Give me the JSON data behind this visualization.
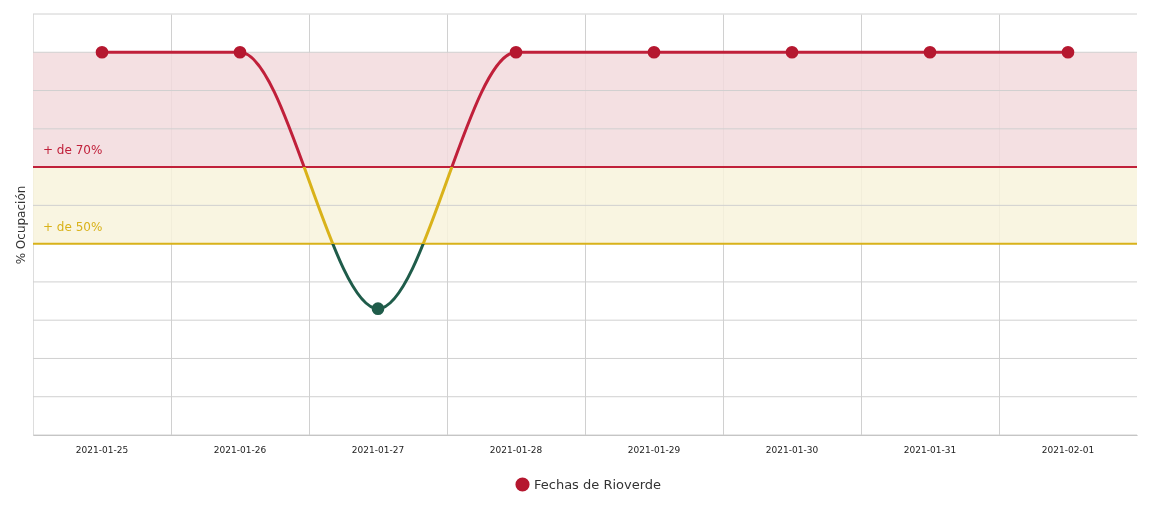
{
  "chart_data": {
    "type": "line",
    "ylabel": "% Ocupación",
    "categories": [
      "2021-01-25",
      "2021-01-26",
      "2021-01-27",
      "2021-01-28",
      "2021-01-29",
      "2021-01-30",
      "2021-01-31",
      "2021-02-01"
    ],
    "series": [
      {
        "name": "Fechas de Rioverde",
        "color": "#b5172f",
        "colors": [
          "#b5172f",
          "#b5172f",
          "#1f5c4a",
          "#b5172f",
          "#b5172f",
          "#b5172f",
          "#b5172f",
          "#b5172f"
        ],
        "values": [
          100,
          100,
          33,
          100,
          100,
          100,
          100,
          100
        ]
      }
    ],
    "ylim": [
      0,
      110
    ],
    "yticks": [
      {
        "value": 0,
        "label": null
      },
      {
        "value": 10,
        "label": null
      },
      {
        "value": 20,
        "label": null
      },
      {
        "value": 30,
        "label": null
      },
      {
        "value": 40,
        "label": null
      },
      {
        "value": 50,
        "label": null
      },
      {
        "value": 60,
        "label": null
      },
      {
        "value": 70,
        "label": null
      },
      {
        "value": 80,
        "label": null
      },
      {
        "value": 90,
        "label": null
      },
      {
        "value": 100,
        "label": null
      },
      {
        "value": 110,
        "label": null
      }
    ],
    "tick_labels": "x",
    "ref_lines": [
      {
        "axis": "y",
        "value": 70,
        "label": "+ de 70%",
        "color": "#c0203a"
      },
      {
        "axis": "y",
        "value": 50,
        "label": "+ de 50%",
        "color": "#d9b21a"
      }
    ],
    "bands": [
      {
        "axis": "y",
        "from": 70,
        "to": 100,
        "color": "#f2dadd"
      },
      {
        "axis": "y",
        "from": 50,
        "to": 70,
        "color": "#f8f3dc"
      }
    ],
    "grid": true,
    "legend": "bottom",
    "marker": "circle",
    "line_style": "solid"
  }
}
